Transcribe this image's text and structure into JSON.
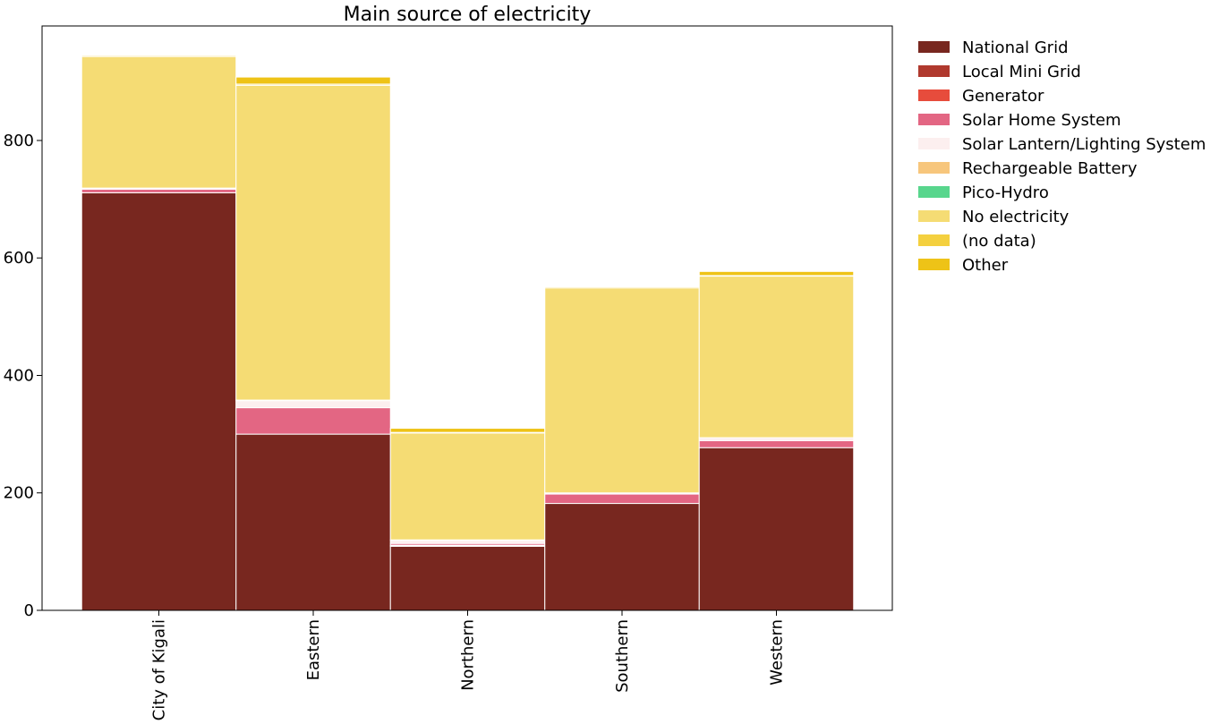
{
  "chart_data": {
    "type": "bar",
    "stacked": true,
    "title": "Main source of electricity",
    "xlabel": "",
    "ylabel": "",
    "ylim": [
      0,
      995
    ],
    "yticks": [
      0,
      200,
      400,
      600,
      800
    ],
    "grid": false,
    "legend_position": "outside-right",
    "categories": [
      "City of Kigali",
      "Eastern",
      "Northern",
      "Southern",
      "Western"
    ],
    "series": [
      {
        "name": "National Grid",
        "color": "#78271f",
        "values": [
          711,
          300,
          109,
          182,
          277
        ]
      },
      {
        "name": "Local Mini Grid",
        "color": "#b0392e",
        "values": [
          0,
          0,
          1,
          0,
          0
        ]
      },
      {
        "name": "Generator",
        "color": "#e74c3c",
        "values": [
          0,
          0,
          1,
          0,
          0
        ]
      },
      {
        "name": "Solar Home System",
        "color": "#e36683",
        "values": [
          6,
          45,
          3,
          16,
          12
        ]
      },
      {
        "name": "Solar Lantern/Lighting System",
        "color": "#fcefef",
        "values": [
          2,
          12,
          5,
          2,
          5
        ]
      },
      {
        "name": "Rechargeable Battery",
        "color": "#f7c67c",
        "values": [
          0,
          1,
          1,
          0,
          0
        ]
      },
      {
        "name": "Pico-Hydro",
        "color": "#58d68d",
        "values": [
          0,
          0,
          0,
          0,
          0
        ]
      },
      {
        "name": "No electricity",
        "color": "#f5dc74",
        "values": [
          224,
          536,
          182,
          349,
          275
        ]
      },
      {
        "name": "(no data)",
        "color": "#f4d03f",
        "values": [
          2,
          2,
          1,
          2,
          1
        ]
      },
      {
        "name": "Other",
        "color": "#eec317",
        "values": [
          1,
          12,
          7,
          1,
          7
        ]
      }
    ]
  }
}
